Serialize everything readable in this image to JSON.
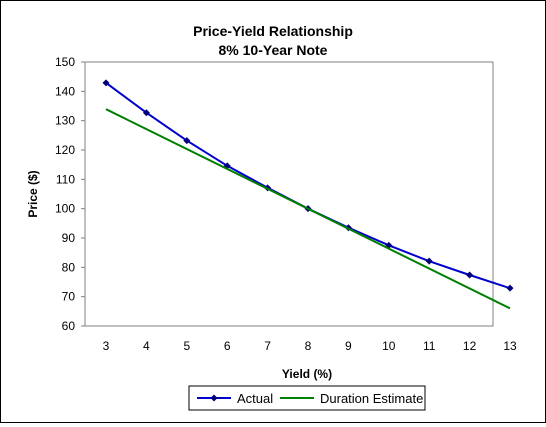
{
  "chart_data": {
    "type": "line",
    "title": [
      "Price-Yield Relationship",
      "8% 10-Year Note"
    ],
    "xlabel": "Yield (%)",
    "ylabel": "Price ($)",
    "xlim": [
      3,
      13
    ],
    "ylim": [
      60,
      150
    ],
    "x_ticks": [
      3,
      4,
      5,
      6,
      7,
      8,
      9,
      10,
      11,
      12,
      13
    ],
    "y_ticks": [
      60,
      70,
      80,
      90,
      100,
      110,
      120,
      130,
      140,
      150
    ],
    "grid": false,
    "legend_position": "bottom",
    "series": [
      {
        "name": "Actual",
        "color": "#0000CC",
        "marker": "diamond",
        "x": [
          3,
          4,
          5,
          6,
          7,
          8,
          9,
          10,
          11,
          12,
          13
        ],
        "y": [
          142.9,
          132.7,
          123.2,
          114.6,
          107.1,
          100.0,
          93.5,
          87.5,
          82.1,
          77.4,
          72.9
        ]
      },
      {
        "name": "Duration Estimate",
        "color": "#008000",
        "marker": "none",
        "x": [
          3,
          13
        ],
        "y": [
          133.9,
          66.0
        ]
      }
    ]
  }
}
